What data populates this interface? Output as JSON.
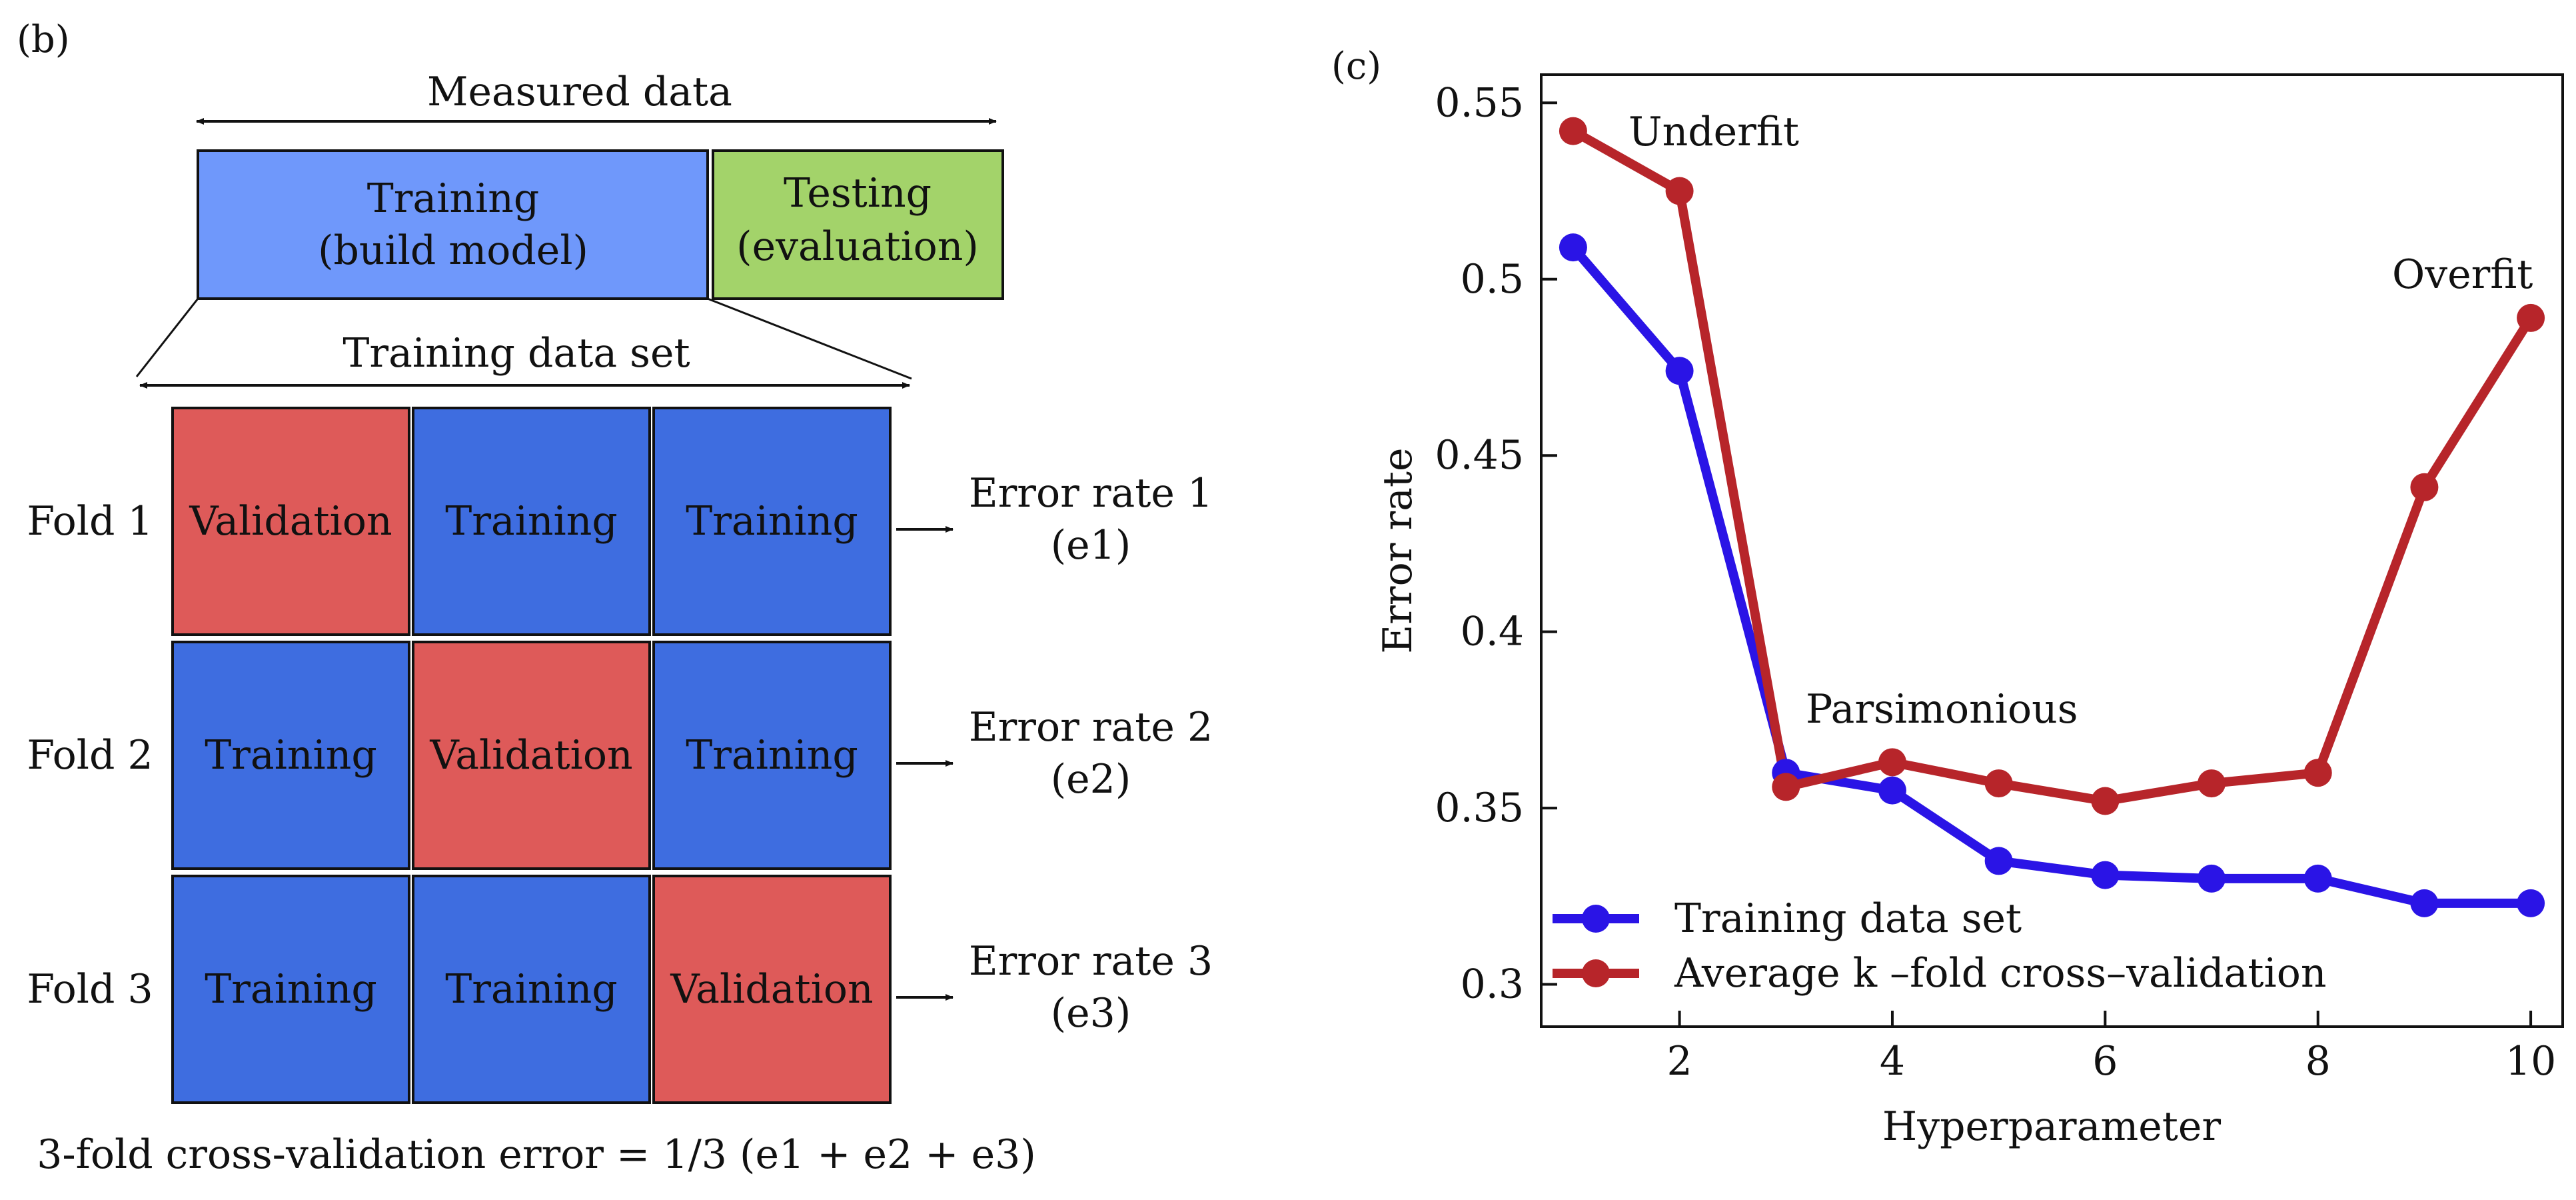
{
  "panel_b": {
    "label": "(b)",
    "measured_data_label": "Measured data",
    "training_box": [
      "Training",
      "(build model)"
    ],
    "testing_box": [
      "Testing",
      "(evaluation)"
    ],
    "training_set_label": "Training data set",
    "folds": [
      {
        "label": "Fold 1",
        "cells": [
          "Validation",
          "Training",
          "Training"
        ],
        "error": [
          "Error rate 1",
          "(e1)"
        ]
      },
      {
        "label": "Fold 2",
        "cells": [
          "Training",
          "Validation",
          "Training"
        ],
        "error": [
          "Error rate 2",
          "(e2)"
        ]
      },
      {
        "label": "Fold 3",
        "cells": [
          "Training",
          "Training",
          "Validation"
        ],
        "error": [
          "Error rate 3",
          "(e3)"
        ]
      }
    ],
    "formula": "3-fold cross-validation error = 1/3 (e1 + e2 + e3)",
    "colors": {
      "training_main": "#6f98fb",
      "testing": "#a3d36a",
      "fold_training": "#3e6de0",
      "validation": "#de5a59"
    }
  },
  "panel_c": {
    "label": "(c)",
    "annotations": {
      "underfit": "Underfit",
      "overfit": "Overfit",
      "parsimonious": "Parsimonious"
    }
  },
  "chart_data": {
    "type": "line",
    "xlabel": "Hyperparameter",
    "ylabel": "Error rate",
    "xlim": [
      0.7,
      10.3
    ],
    "ylim": [
      0.288,
      0.558
    ],
    "xticks": [
      2,
      4,
      6,
      8,
      10
    ],
    "yticks": [
      0.3,
      0.35,
      0.4,
      0.45,
      0.5,
      0.55
    ],
    "ytick_labels": [
      "0.3",
      "0.35",
      "0.4",
      "0.45",
      "0.5",
      "0.55"
    ],
    "grid": false,
    "legend_position": "bottom-left",
    "x": [
      1,
      2,
      3,
      4,
      5,
      6,
      7,
      8,
      9,
      10
    ],
    "series": [
      {
        "name": "Training data set",
        "color": "#2a14e6",
        "values": [
          0.509,
          0.474,
          0.36,
          0.355,
          0.335,
          0.331,
          0.33,
          0.33,
          0.323,
          0.323
        ]
      },
      {
        "name": "Average k –fold cross–validation",
        "color": "#b7252a",
        "values": [
          0.542,
          0.525,
          0.356,
          0.363,
          0.357,
          0.352,
          0.357,
          0.36,
          0.441,
          0.489
        ]
      }
    ]
  }
}
